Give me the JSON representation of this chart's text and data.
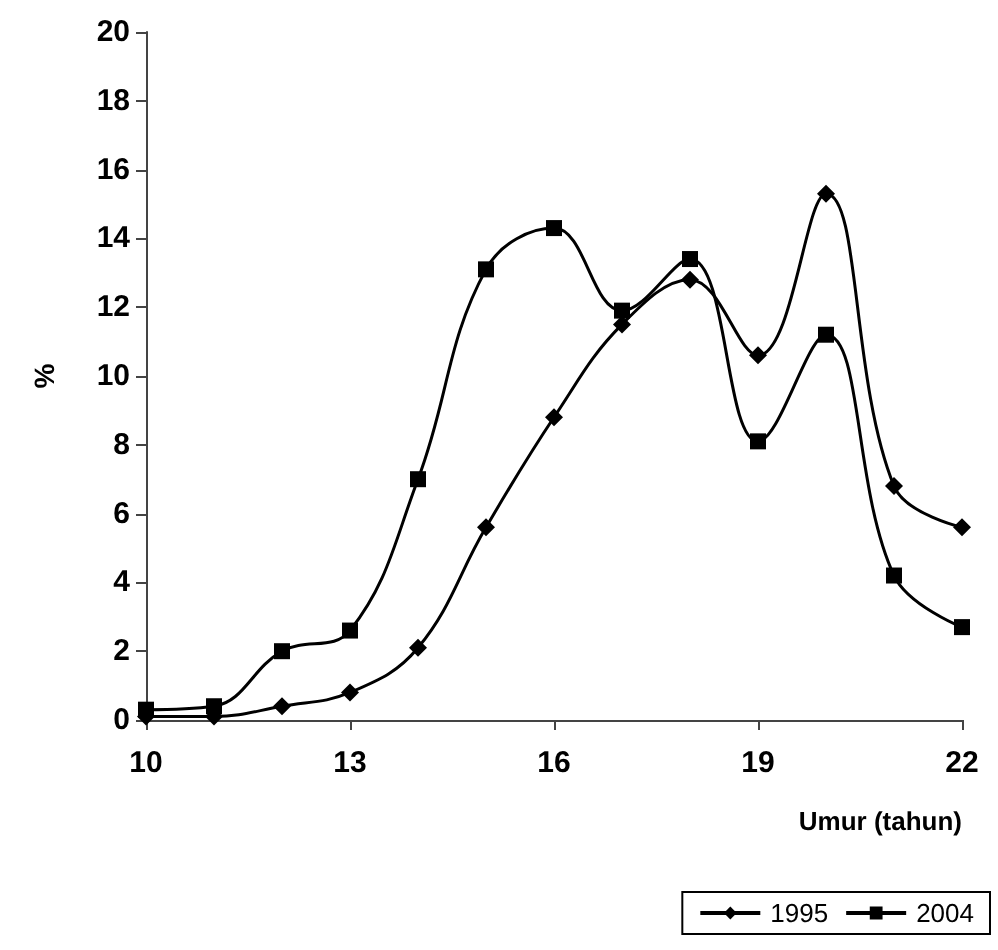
{
  "chart_data": {
    "type": "line",
    "xlabel": "Umur (tahun)",
    "ylabel": "%",
    "x": [
      10,
      11,
      12,
      13,
      14,
      15,
      16,
      17,
      18,
      19,
      20,
      21,
      22
    ],
    "series": [
      {
        "name": "1995",
        "color": "#000000",
        "marker": "diamond",
        "values": [
          0.1,
          0.1,
          0.4,
          0.8,
          2.1,
          5.6,
          8.8,
          11.5,
          12.8,
          10.6,
          15.3,
          6.8,
          5.6
        ]
      },
      {
        "name": "2004",
        "color": "#000000",
        "marker": "square",
        "values": [
          0.3,
          0.4,
          2.0,
          2.6,
          7.0,
          13.1,
          14.3,
          11.9,
          13.4,
          8.1,
          11.2,
          4.2,
          2.7
        ]
      }
    ],
    "xlim": [
      10,
      22
    ],
    "xticks": [
      10,
      13,
      16,
      19,
      22
    ],
    "ylim": [
      0,
      20
    ],
    "yticks": [
      0,
      2,
      4,
      6,
      8,
      10,
      12,
      14,
      16,
      18,
      20
    ],
    "grid": false,
    "legend": "bottom right",
    "line_style": "solid"
  }
}
